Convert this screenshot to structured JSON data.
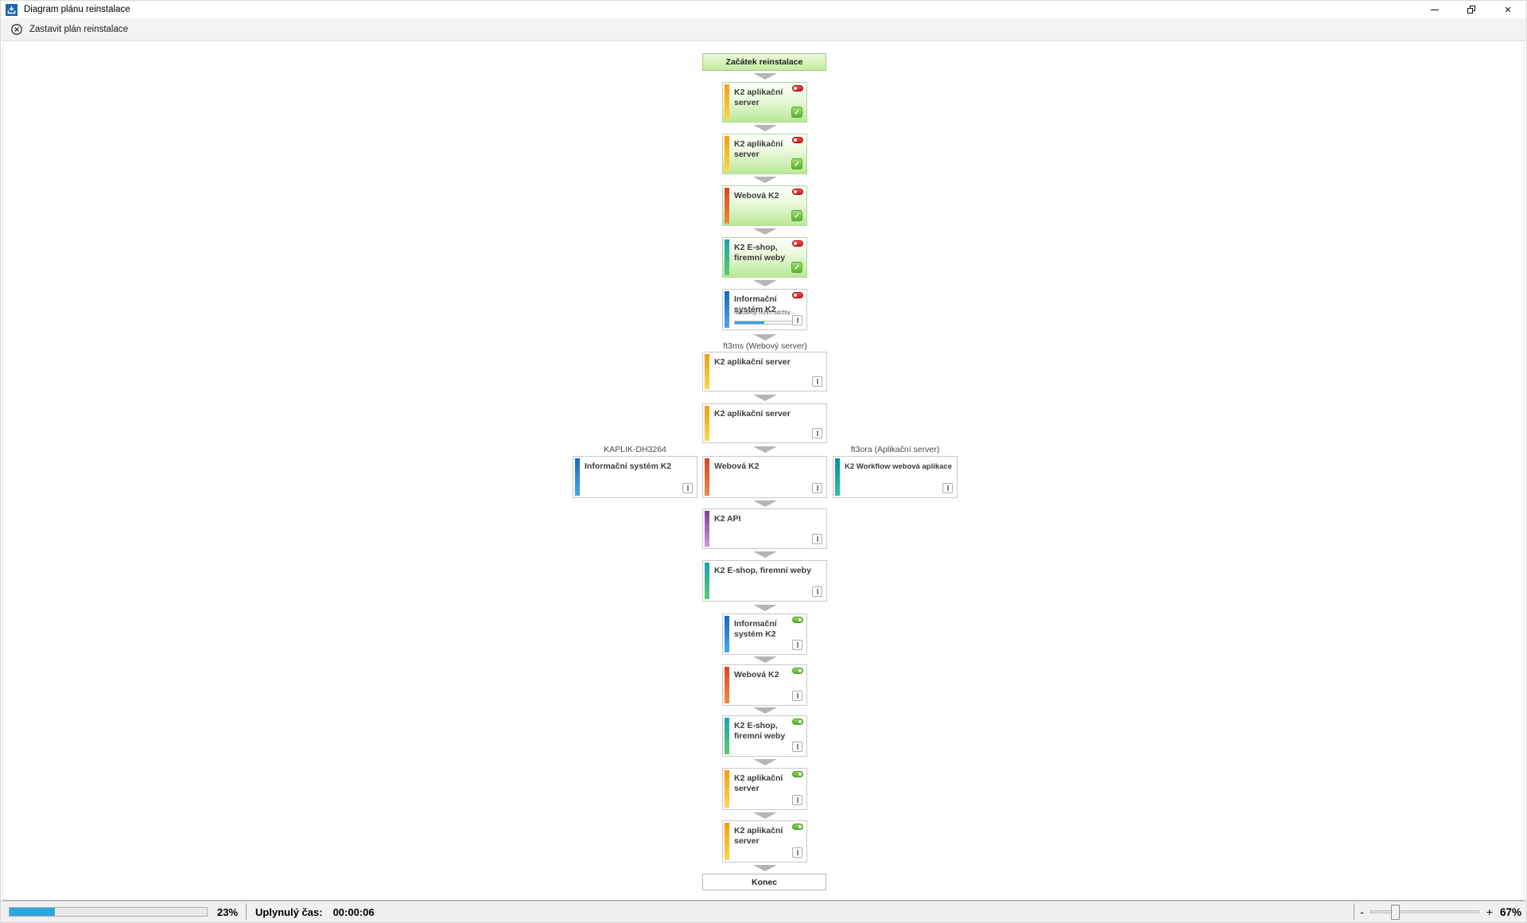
{
  "window": {
    "title": "Diagram plánu reinstalace"
  },
  "toolbar": {
    "stop_button": {
      "label": "Zastavit plán reinstalace"
    }
  },
  "icons": {
    "app": "install-diagram-icon",
    "toolbar_stop": "stop-circle-icon",
    "close_glyph": "✕",
    "check_glyph": "✓"
  },
  "diagram": {
    "bar_colors": {
      "orange": [
        "#f59b0c",
        "#ffd54f"
      ],
      "red": [
        "#dc4326",
        "#ef8a3e"
      ],
      "green": [
        "#17a5ad",
        "#5bcb6f"
      ],
      "blue": [
        "#1767c0",
        "#4aa7ea"
      ],
      "purple": [
        "#7f3f99",
        "#c79ad8"
      ],
      "teal": [
        "#00929b",
        "#2ec4a0"
      ]
    },
    "nodes": [
      {
        "kind": "start",
        "label": "Začátek reinstalace"
      },
      {
        "kind": "task",
        "label": "K2 aplikační server",
        "color": "orange",
        "size": "narrow",
        "state": "done"
      },
      {
        "kind": "task",
        "label": "K2 aplikační server",
        "color": "orange",
        "size": "narrow",
        "state": "done"
      },
      {
        "kind": "task",
        "label": "Webová K2",
        "color": "red",
        "size": "narrow",
        "state": "done"
      },
      {
        "kind": "task",
        "label": "K2 E-shop, firemní weby",
        "color": "green",
        "size": "narrow",
        "state": "done"
      },
      {
        "kind": "task",
        "label": "Informační systém K2",
        "color": "blue",
        "size": "narrow",
        "state": "active",
        "status_text": "Nastavuji režim údržby...",
        "progress_percent": 45
      },
      {
        "kind": "task",
        "label": "K2 aplikační server",
        "color": "orange",
        "size": "wide",
        "state": "pending",
        "group_label": "ft3ms (Webový server)"
      },
      {
        "kind": "task",
        "label": "K2 aplikační server",
        "color": "orange",
        "size": "wide",
        "state": "pending"
      },
      {
        "kind": "row",
        "items": [
          {
            "label": "Informační systém K2",
            "color": "blue",
            "state": "pending",
            "group_label": "KAPLIK-DH3264"
          },
          {
            "label": "Webová K2",
            "color": "red",
            "state": "pending"
          },
          {
            "label": "K2 Workflow webová aplikace",
            "color": "teal",
            "state": "pending",
            "group_label": "ft3ora (Aplikační server)"
          }
        ]
      },
      {
        "kind": "task",
        "label": "K2 API",
        "color": "purple",
        "size": "wide",
        "state": "pending"
      },
      {
        "kind": "task",
        "label": "K2 E-shop, firemní weby",
        "color": "green",
        "size": "wide",
        "state": "pending"
      },
      {
        "kind": "task",
        "label": "Informační systém K2",
        "color": "blue",
        "size": "narrow",
        "state": "armed"
      },
      {
        "kind": "task",
        "label": "Webová K2",
        "color": "red",
        "size": "narrow",
        "state": "armed"
      },
      {
        "kind": "task",
        "label": "K2 E-shop, firemní weby",
        "color": "green",
        "size": "narrow",
        "state": "armed"
      },
      {
        "kind": "task",
        "label": "K2 aplikační server",
        "color": "orange",
        "size": "narrow",
        "state": "armed"
      },
      {
        "kind": "task",
        "label": "K2 aplikační server",
        "color": "orange",
        "size": "narrow",
        "state": "armed"
      },
      {
        "kind": "end",
        "label": "Konec"
      }
    ]
  },
  "statusbar": {
    "progress_percent": 23,
    "progress_text": "23%",
    "elapsed_label": "Uplynulý čas:",
    "elapsed_value": "00:00:06",
    "zoom": {
      "minus": "-",
      "plus": "+",
      "value_text": "67%",
      "slider_percent": 23
    }
  }
}
